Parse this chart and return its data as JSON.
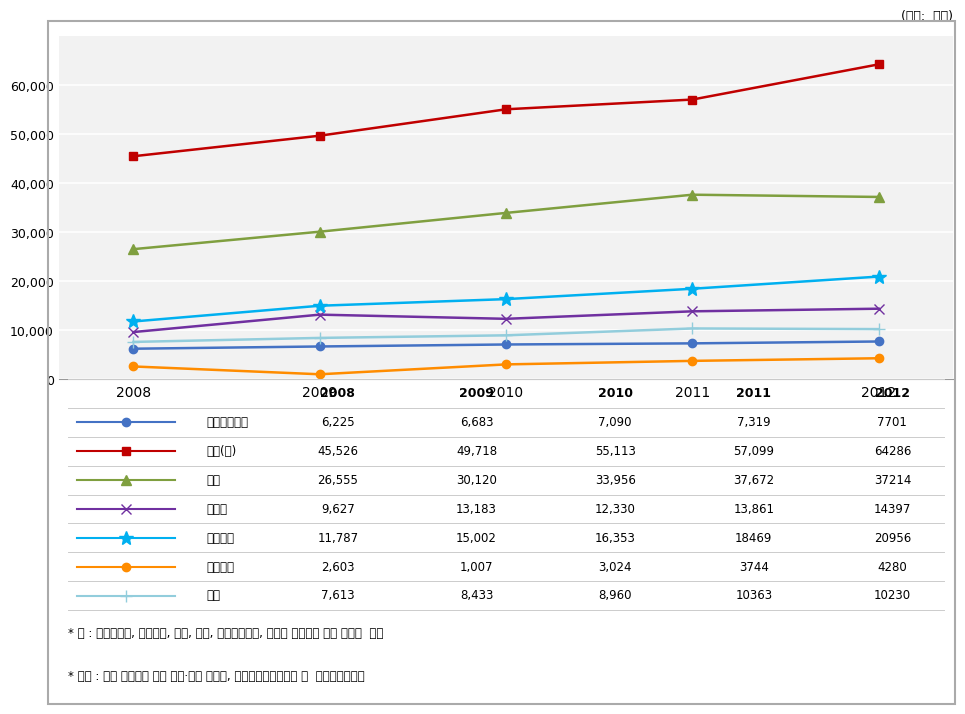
{
  "years": [
    2008,
    2009,
    2010,
    2011,
    2012
  ],
  "series": [
    {
      "label": "국공립연구소",
      "values": [
        6225,
        6683,
        7090,
        7319,
        7701
      ],
      "color": "#4472C4",
      "marker": "o",
      "linestyle": "-"
    },
    {
      "label": "출연(연)",
      "values": [
        45526,
        49718,
        55113,
        57099,
        64286
      ],
      "color": "#C00000",
      "marker": "s",
      "linestyle": "-"
    },
    {
      "label": "대학",
      "values": [
        26555,
        30120,
        33956,
        37672,
        37214
      ],
      "color": "#7F9F3F",
      "marker": "^",
      "linestyle": "-"
    },
    {
      "label": "대기업",
      "values": [
        9627,
        13183,
        12330,
        13861,
        14397
      ],
      "color": "#7030A0",
      "marker": "x",
      "linestyle": "-"
    },
    {
      "label": "중소기업",
      "values": [
        11787,
        15002,
        16353,
        18469,
        20956
      ],
      "color": "#00B0F0",
      "marker": "*",
      "linestyle": "-"
    },
    {
      "label": "정부부처",
      "values": [
        2603,
        1007,
        3024,
        3744,
        4280
      ],
      "color": "#FF8C00",
      "marker": "o",
      "linestyle": "-"
    },
    {
      "label": "기타",
      "values": [
        7613,
        8433,
        8960,
        10363,
        10230
      ],
      "color": "#92CDDC",
      "marker": "+",
      "linestyle": "-"
    }
  ],
  "ylim": [
    0,
    70000
  ],
  "yticks": [
    0,
    10000,
    20000,
    30000,
    40000,
    50000,
    60000
  ],
  "unit_label": "(단위:  억원)",
  "note1": "* 주 : 비영리법인, 연구조합, 협회, 학회, 정부투자기관, 복수의 수행주체 등은 기타로  분류",
  "note2": "* 출처 : 국가 연구개발 사업 조사·분석 보고서, 국가과학기술위원회 및  미래창조과학부",
  "bg_color": "#F2F2F2",
  "outer_bg": "#FFFFFF",
  "table_values": [
    [
      "국공립연구소",
      "6,225",
      "6,683",
      "7,090",
      "7,319",
      "7701"
    ],
    [
      "출연(연)",
      "45,526",
      "49,718",
      "55,113",
      "57,099",
      "64286"
    ],
    [
      "대학",
      "26,555",
      "30,120",
      "33,956",
      "37,672",
      "37214"
    ],
    [
      "대기업",
      "9,627",
      "13,183",
      "12,330",
      "13,861",
      "14397"
    ],
    [
      "중소기업",
      "11,787",
      "15,002",
      "16,353",
      "18469",
      "20956"
    ],
    [
      "정부부처",
      "2,603",
      "1,007",
      "3,024",
      "3744",
      "4280"
    ],
    [
      "기타",
      "7,613",
      "8,433",
      "8,960",
      "10363",
      "10230"
    ]
  ]
}
